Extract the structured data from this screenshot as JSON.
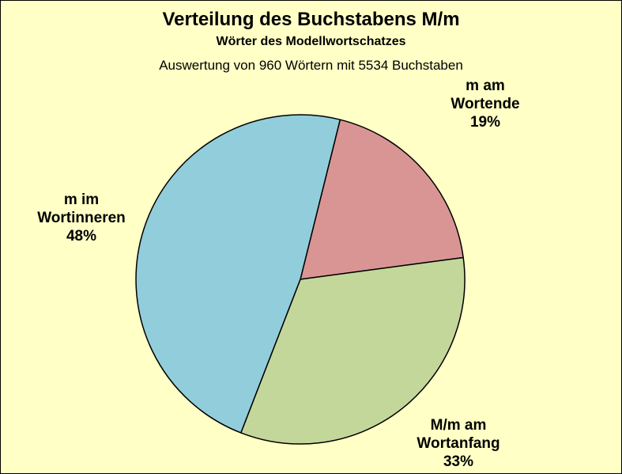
{
  "chart_data": {
    "type": "pie",
    "title": "Verteilung des Buchstabens M/m",
    "subtitle": "Wörter des Modellwortschatzes",
    "note": "Auswertung von 960 Wörtern mit 5534 Buchstaben",
    "start_angle_deg": 14,
    "direction": "clockwise",
    "slices": [
      {
        "label_lines": [
          "m am",
          "Wortende"
        ],
        "value": 19,
        "value_label": "19%",
        "color": "#d99594"
      },
      {
        "label_lines": [
          "M/m am",
          "Wortanfang"
        ],
        "value": 33,
        "value_label": "33%",
        "color": "#c4d79b"
      },
      {
        "label_lines": [
          "m im",
          "Wortinneren"
        ],
        "value": 48,
        "value_label": "48%",
        "color": "#92cddc"
      }
    ],
    "background": "#ffffc6",
    "edge_color": "#000000"
  }
}
